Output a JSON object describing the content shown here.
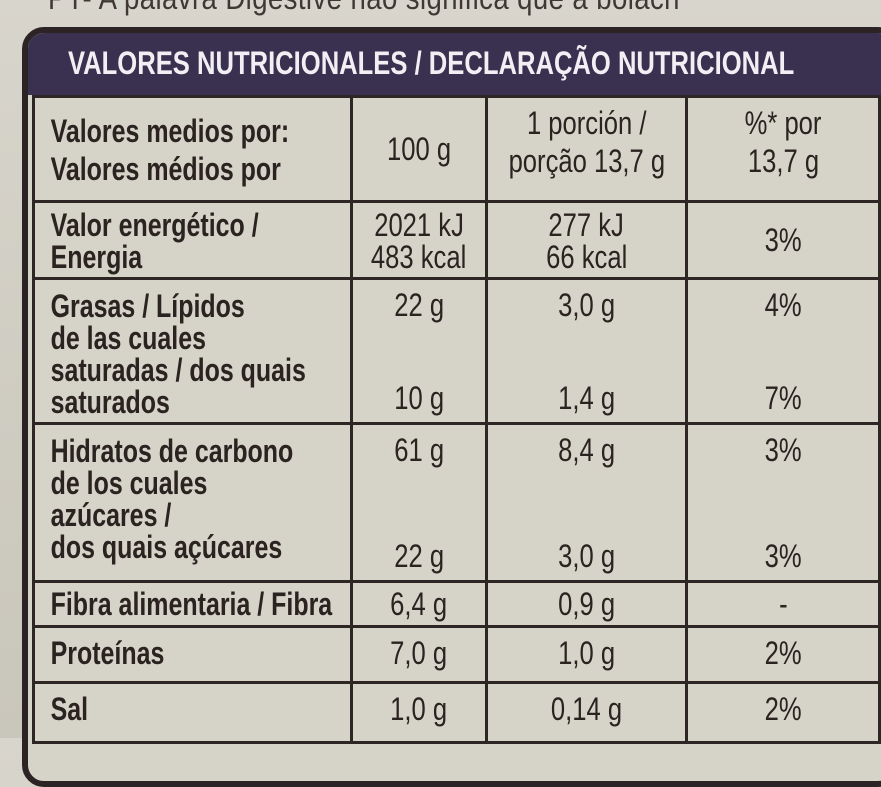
{
  "top_text": "PT- A palavra Digestive não significa que a bolach",
  "header": "VALORES NUTRICIONALES / DECLARAÇÃO NUTRICIONAL",
  "columns": {
    "label": [
      "Valores medios por:",
      "Valores médios por"
    ],
    "per100": "100 g",
    "portion": [
      "1 porción /",
      "porção 13,7 g"
    ],
    "pct": [
      "%* por",
      "13,7 g"
    ]
  },
  "rows": {
    "energy": {
      "label": [
        "Valor energético /",
        "Energia"
      ],
      "per100": [
        "2021 kJ",
        "483 kcal"
      ],
      "portion": [
        "277 kJ",
        "66 kcal"
      ],
      "pct": "3%"
    },
    "fat": {
      "label": [
        "Grasas / Lípidos",
        "de las cuales",
        "saturadas / dos quais",
        "saturados"
      ],
      "per100": "22 g",
      "portion": "3,0 g",
      "pct": "4%",
      "sat_per100": "10 g",
      "sat_portion": "1,4 g",
      "sat_pct": "7%"
    },
    "carbs": {
      "label": [
        "Hidratos de carbono",
        "de los cuales",
        "azúcares /",
        "dos quais açúcares"
      ],
      "per100": "61 g",
      "portion": "8,4 g",
      "pct": "3%",
      "sug_per100": "22 g",
      "sug_portion": "3,0 g",
      "sug_pct": "3%"
    },
    "fiber": {
      "label": "Fibra alimentaria / Fibra",
      "per100": "6,4 g",
      "portion": "0,9 g",
      "pct": "-"
    },
    "protein": {
      "label": "Proteínas",
      "per100": "7,0 g",
      "portion": "1,0 g",
      "pct": "2%"
    },
    "salt": {
      "label": "Sal",
      "per100": "1,0 g",
      "portion": "0,14 g",
      "pct": "2%"
    }
  }
}
